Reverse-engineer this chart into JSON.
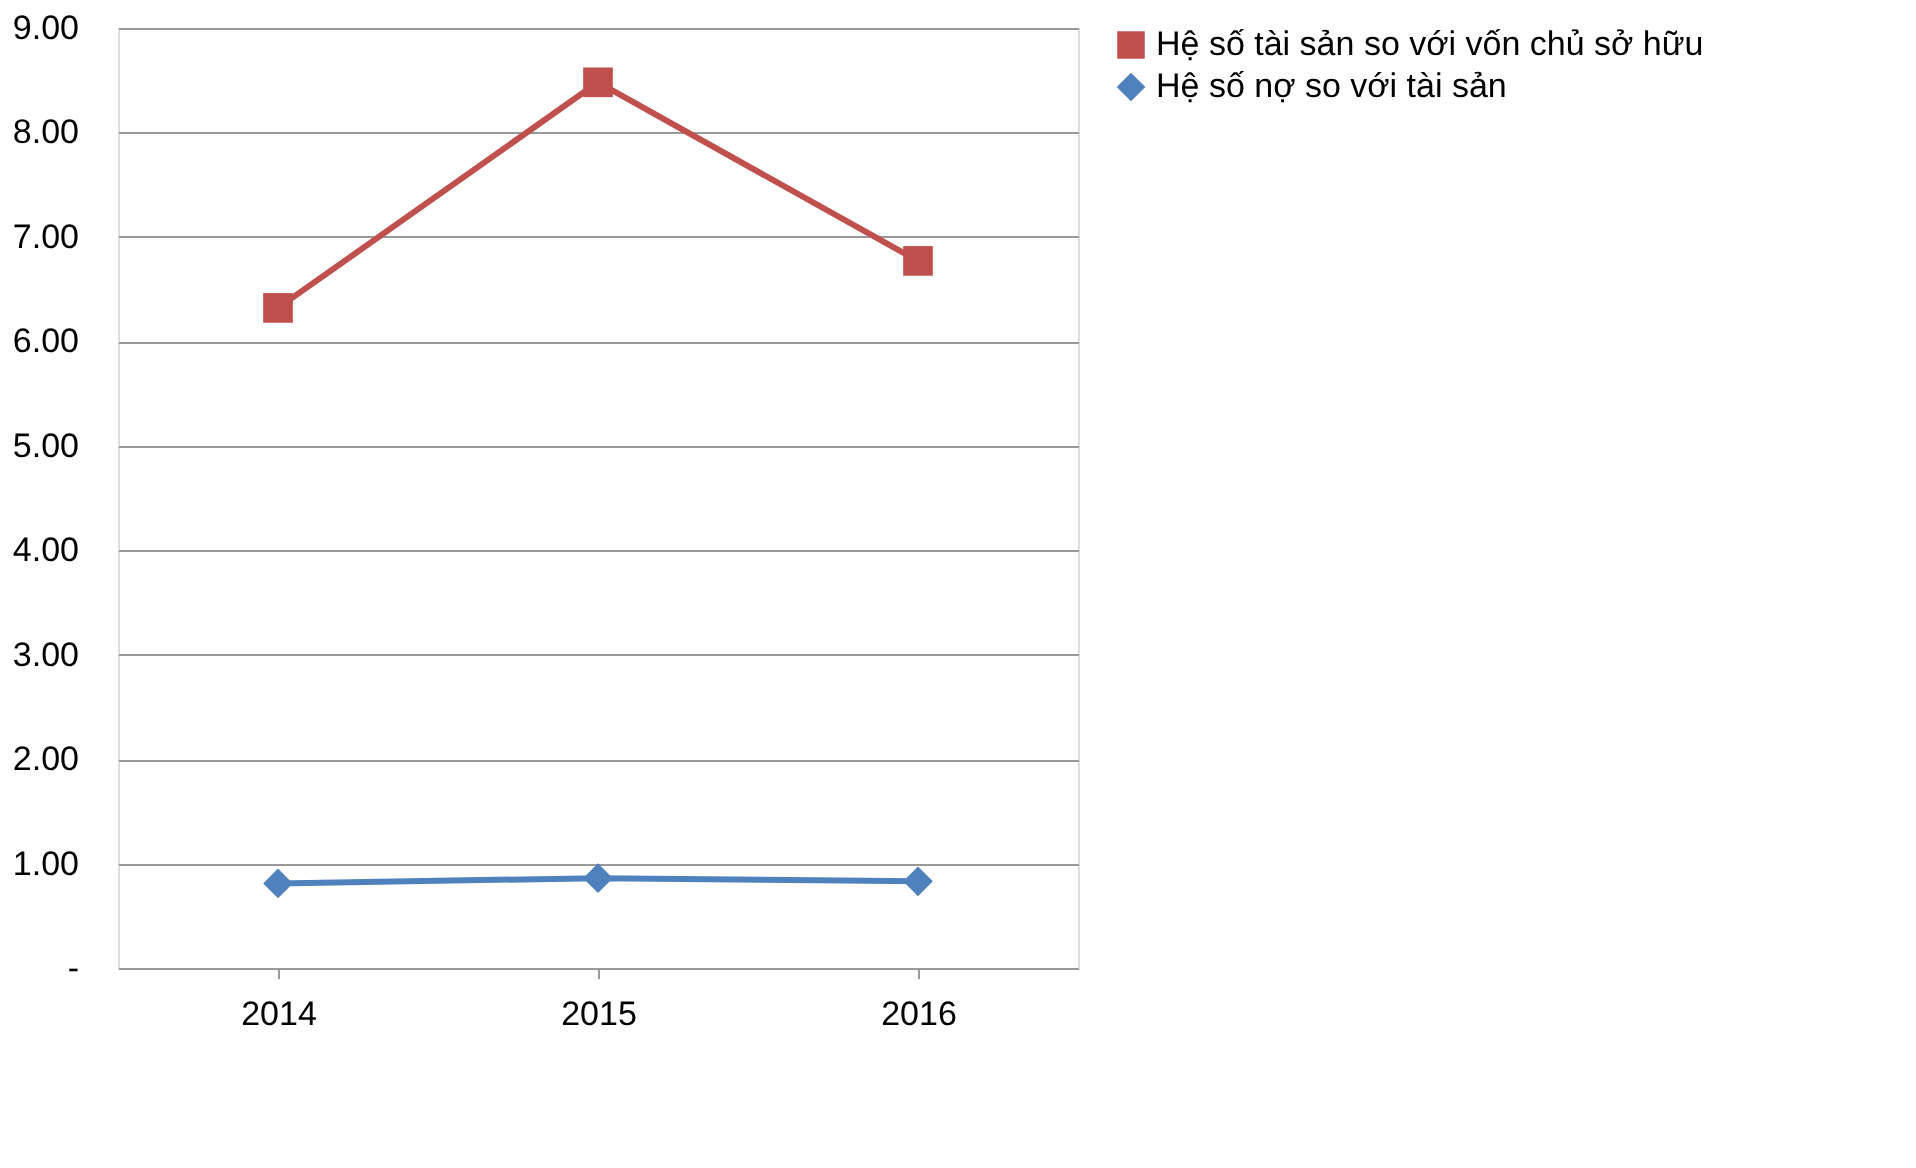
{
  "chart_data": {
    "type": "line",
    "categories": [
      "2014",
      "2015",
      "2016"
    ],
    "series": [
      {
        "name": "Hệ số tài sản so với vốn chủ sở hữu",
        "color": "#c0504d",
        "marker": "square",
        "values": [
          6.32,
          8.48,
          6.77
        ]
      },
      {
        "name": "Hệ số nợ so với tài sản",
        "color": "#4f81bd",
        "marker": "diamond",
        "values": [
          0.81,
          0.86,
          0.83
        ]
      }
    ],
    "ylim": [
      0,
      9
    ],
    "yticks": [
      {
        "value": 0,
        "label": "-"
      },
      {
        "value": 1,
        "label": "1.00"
      },
      {
        "value": 2,
        "label": "2.00"
      },
      {
        "value": 3,
        "label": "3.00"
      },
      {
        "value": 4,
        "label": "4.00"
      },
      {
        "value": 5,
        "label": "5.00"
      },
      {
        "value": 6,
        "label": "6.00"
      },
      {
        "value": 7,
        "label": "7.00"
      },
      {
        "value": 8,
        "label": "8.00"
      },
      {
        "value": 9,
        "label": "9.00"
      }
    ],
    "grid": "y",
    "legend": "right",
    "line_style": "solid"
  }
}
